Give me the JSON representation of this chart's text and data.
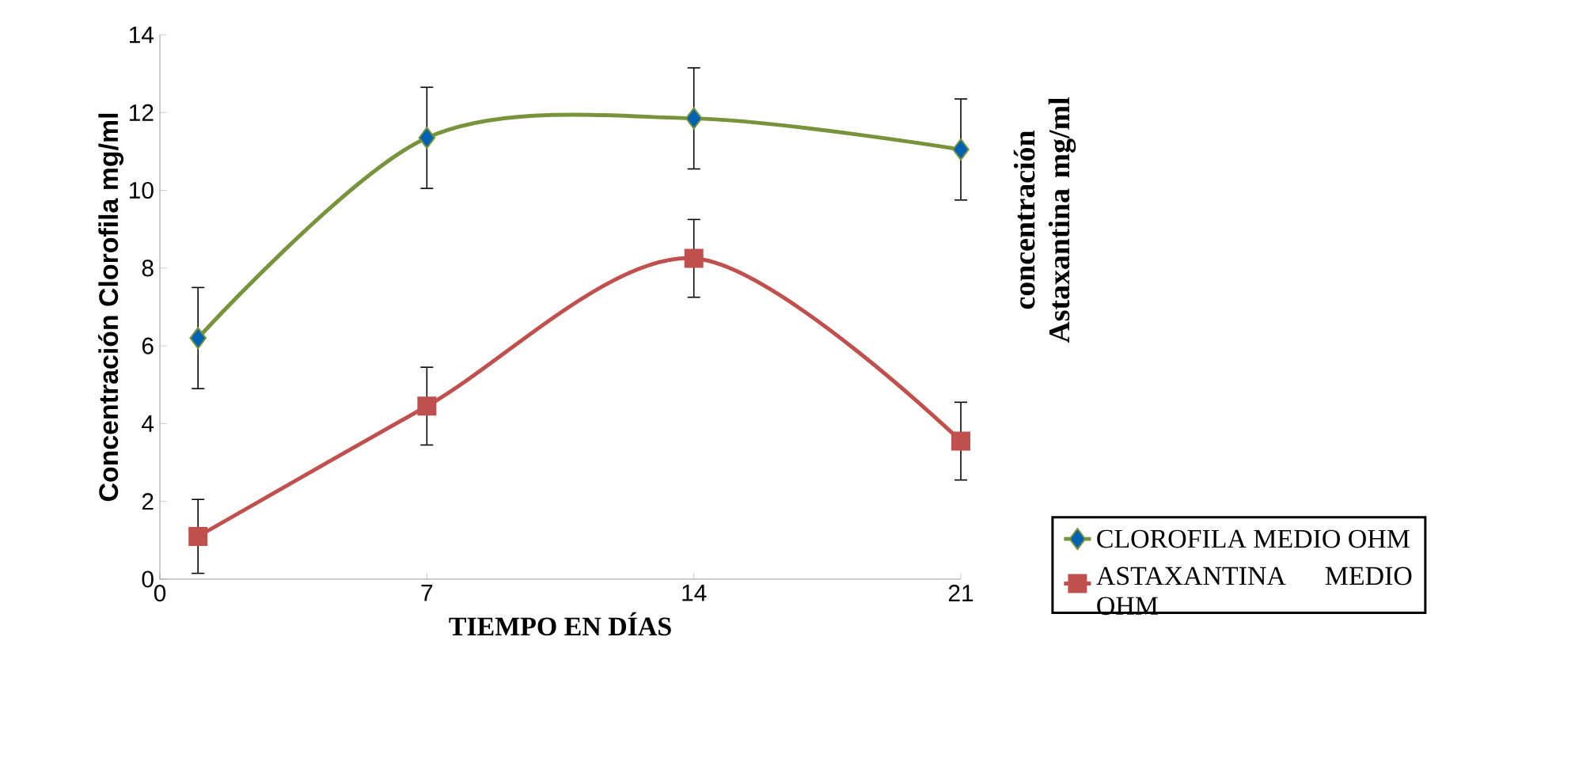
{
  "chart_data": {
    "type": "line",
    "xlabel": "TIEMPO EN DÍAS",
    "ylabel": "Concentración Clorofila mg/ml",
    "y2label": "concentración Astaxantina mg/ml",
    "x": [
      1,
      7,
      14,
      21
    ],
    "series": [
      {
        "name": "CLOROFILA MEDIO OHM",
        "color": "#77933c",
        "marker": "diamond",
        "values": [
          6.2,
          11.35,
          11.85,
          11.05
        ],
        "errors": [
          1.3,
          1.3,
          1.3,
          1.3
        ]
      },
      {
        "name": "ASTAXANTINA MEDIO OHM",
        "color": "#c0504d",
        "marker": "square",
        "values": [
          1.1,
          4.45,
          8.25,
          3.55
        ],
        "errors": [
          0.95,
          1,
          1,
          1
        ]
      }
    ],
    "xlim": [
      0,
      21
    ],
    "xticks": [
      0,
      7,
      14,
      21
    ],
    "ylim": [
      0,
      14
    ],
    "yticks": [
      0,
      2,
      4,
      6,
      8,
      10,
      12,
      14
    ],
    "grid": false,
    "legend": "bottom right"
  }
}
